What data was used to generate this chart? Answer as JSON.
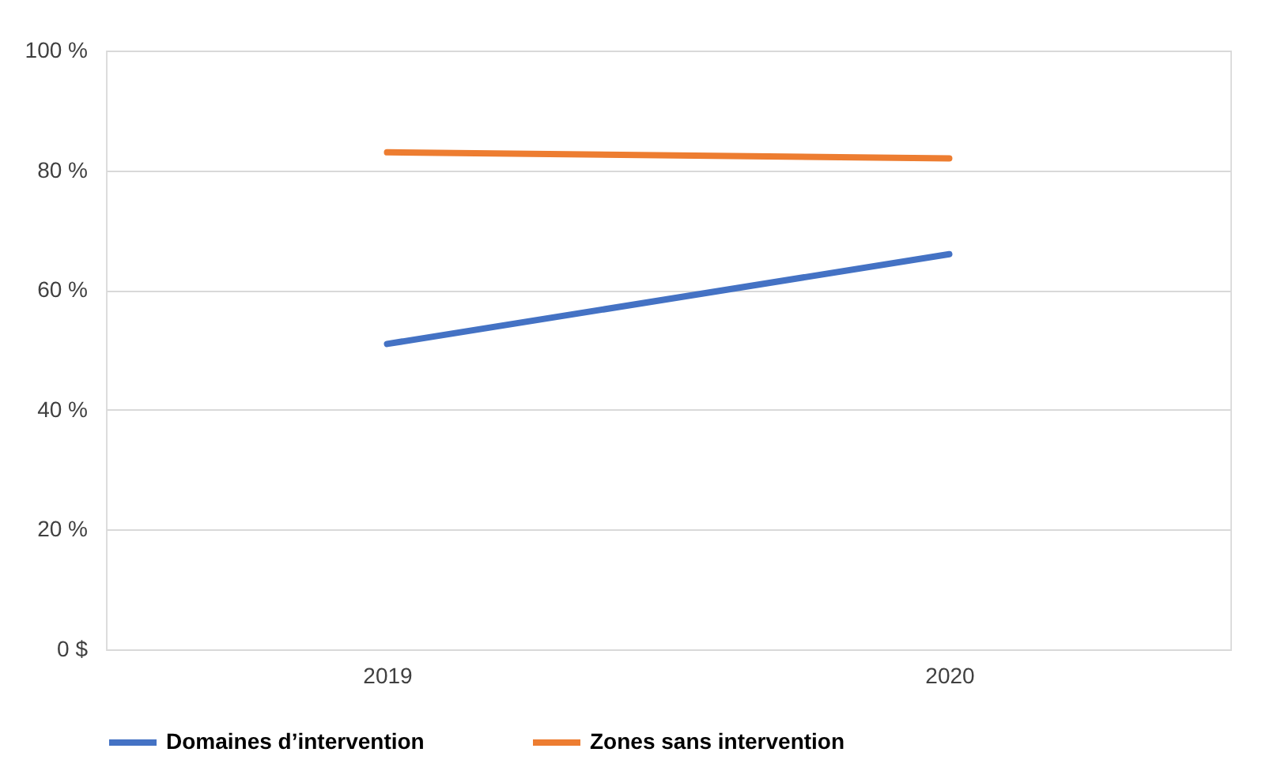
{
  "chart_data": {
    "type": "line",
    "categories": [
      "2019",
      "2020"
    ],
    "series": [
      {
        "name": "Domaines d’intervention",
        "color": "#4472c4",
        "values": [
          51,
          66
        ]
      },
      {
        "name": "Zones sans intervention",
        "color": "#ed7d31",
        "values": [
          83,
          82
        ]
      }
    ],
    "ylim": [
      0,
      100
    ],
    "yticks": [
      {
        "value": 0,
        "label": "0 $"
      },
      {
        "value": 20,
        "label": "20 %"
      },
      {
        "value": 40,
        "label": "40 %"
      },
      {
        "value": 60,
        "label": "60 %"
      },
      {
        "value": 80,
        "label": "80 %"
      },
      {
        "value": 100,
        "label": "100 %"
      }
    ],
    "grid": "y",
    "legend": "bottom",
    "marker": "none",
    "line_style": "solid"
  }
}
